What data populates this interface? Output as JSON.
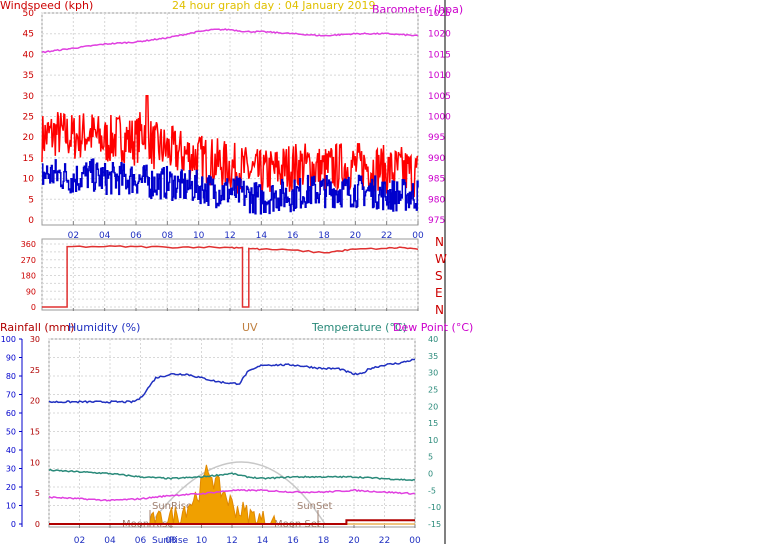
{
  "header": {
    "title": "24 hour graph day : 04 January 2019",
    "wind_label": "Windspeed (kph)",
    "baro_label": "Barometer (hpa)"
  },
  "lower_header": {
    "rain_label": "Rainfall (mm)",
    "humidity_label": "Humidity (%)",
    "uv_label": "UV",
    "temp_label": "Temperature (°C)",
    "dew_label": "Dew Point (°C)"
  },
  "annotations": {
    "sunrise": "SunRise",
    "sunset": "SunSet",
    "moonrise": "Moon Rise",
    "moonset": "Moon Set",
    "sunrise_axis": "SunRise"
  },
  "colors": {
    "wind_gust": "#ff0000",
    "wind_avg": "#0000cc",
    "barometer": "#e040e0",
    "direction": "#e03030",
    "humidity": "#2030c0",
    "temperature": "#2a8a7a",
    "dewpoint": "#e040e0",
    "rain": "#b00000",
    "uv": "#f0a000",
    "title": "#e0c000"
  },
  "chart_data": [
    {
      "type": "line",
      "x_ticks": [
        "02",
        "04",
        "06",
        "08",
        "10",
        "12",
        "14",
        "16",
        "18",
        "20",
        "22",
        "00"
      ],
      "xlim": [
        0,
        24
      ],
      "left_axis": {
        "ylim": [
          0,
          50
        ],
        "ticks": [
          "0",
          "5",
          "10",
          "15",
          "20",
          "25",
          "30",
          "35",
          "40",
          "45",
          "50"
        ]
      },
      "right_axis": {
        "ylim": [
          975,
          1025
        ],
        "ticks": [
          "975",
          "980",
          "985",
          "990",
          "995",
          "1000",
          "1005",
          "1010",
          "1015",
          "1020",
          "1025"
        ]
      },
      "series": [
        {
          "values": [
            [
              0,
              20
            ],
            [
              1,
              21
            ],
            [
              2,
              20
            ],
            [
              3,
              21
            ],
            [
              4,
              19
            ],
            [
              5,
              20
            ],
            [
              6,
              19
            ],
            [
              6.7,
              23
            ],
            [
              7,
              18
            ],
            [
              8,
              17
            ],
            [
              9,
              16
            ],
            [
              10,
              15
            ],
            [
              11,
              14
            ],
            [
              12,
              13
            ],
            [
              13,
              12
            ],
            [
              14,
              11
            ],
            [
              15,
              12
            ],
            [
              16,
              13
            ],
            [
              17,
              13
            ],
            [
              18,
              12
            ],
            [
              19,
              13
            ],
            [
              20,
              13
            ],
            [
              21,
              13
            ],
            [
              22,
              12
            ],
            [
              23,
              12
            ],
            [
              24,
              11
            ]
          ]
        },
        {
          "values": [
            [
              0,
              11
            ],
            [
              1,
              11
            ],
            [
              2,
              10
            ],
            [
              3,
              11
            ],
            [
              4,
              10
            ],
            [
              5,
              10
            ],
            [
              6,
              10
            ],
            [
              7,
              9
            ],
            [
              8,
              9
            ],
            [
              9,
              8
            ],
            [
              10,
              8
            ],
            [
              11,
              7
            ],
            [
              12,
              7
            ],
            [
              13,
              6
            ],
            [
              14,
              5
            ],
            [
              15,
              6
            ],
            [
              16,
              6
            ],
            [
              17,
              7
            ],
            [
              18,
              7
            ],
            [
              19,
              7
            ],
            [
              20,
              7
            ],
            [
              21,
              7
            ],
            [
              22,
              6
            ],
            [
              23,
              6
            ],
            [
              24,
              6
            ]
          ]
        },
        {
          "values": [
            [
              0,
              1015.5
            ],
            [
              2,
              1016.5
            ],
            [
              4,
              1017.5
            ],
            [
              6,
              1018
            ],
            [
              8,
              1019
            ],
            [
              10,
              1020.5
            ],
            [
              11,
              1021
            ],
            [
              12,
              1021
            ],
            [
              13,
              1020.5
            ],
            [
              14,
              1020.5
            ],
            [
              16,
              1020
            ],
            [
              18,
              1019.5
            ],
            [
              20,
              1020
            ],
            [
              22,
              1020
            ],
            [
              24,
              1019.5
            ]
          ]
        }
      ]
    },
    {
      "type": "line",
      "x_ticks": [
        "02",
        "04",
        "06",
        "08",
        "10",
        "12",
        "14",
        "16",
        "18",
        "20",
        "22",
        "00"
      ],
      "xlim": [
        0,
        24
      ],
      "ylim": [
        0,
        360
      ],
      "y_ticks": [
        "0",
        "45",
        "90",
        "135",
        "180",
        "225",
        "270",
        "315",
        "360"
      ],
      "direction_labels": [
        "N",
        "W",
        "S",
        "E",
        "N"
      ],
      "series": [
        {
          "values": [
            [
              0,
              0
            ],
            [
              1.6,
              0
            ],
            [
              1.6,
              345
            ],
            [
              4,
              345
            ],
            [
              6,
              345
            ],
            [
              8,
              342
            ],
            [
              10,
              343
            ],
            [
              12,
              340
            ],
            [
              12.8,
              340
            ],
            [
              12.8,
              0
            ],
            [
              13.2,
              0
            ],
            [
              13.2,
              335
            ],
            [
              14,
              330
            ],
            [
              16,
              325
            ],
            [
              18,
              310
            ],
            [
              19,
              320
            ],
            [
              20,
              330
            ],
            [
              22,
              335
            ],
            [
              23,
              340
            ],
            [
              24,
              330
            ]
          ]
        }
      ]
    },
    {
      "type": "line",
      "x_ticks": [
        "02",
        "04",
        "06",
        "08",
        "10",
        "12",
        "14",
        "16",
        "18",
        "20",
        "22",
        "00"
      ],
      "xlim": [
        0,
        24
      ],
      "humidity_axis": {
        "ylim": [
          0,
          100
        ],
        "ticks": [
          "0",
          "10",
          "20",
          "30",
          "40",
          "50",
          "60",
          "70",
          "80",
          "90",
          "100"
        ]
      },
      "rain_axis": {
        "ylim": [
          0,
          30
        ],
        "ticks": [
          "0",
          "5",
          "10",
          "15",
          "20",
          "25",
          "30"
        ]
      },
      "temp_axis": {
        "ylim": [
          -15,
          40
        ],
        "ticks": [
          "-15",
          "-10",
          "-5",
          "0",
          "5",
          "10",
          "15",
          "20",
          "25",
          "30",
          "35",
          "40"
        ]
      },
      "series": [
        {
          "values": [
            [
              0,
              66
            ],
            [
              2,
              66
            ],
            [
              4,
              66
            ],
            [
              5.5,
              66
            ],
            [
              6,
              68
            ],
            [
              7,
              79
            ],
            [
              8,
              81
            ],
            [
              9,
              81
            ],
            [
              10,
              79
            ],
            [
              11,
              77
            ],
            [
              12,
              76
            ],
            [
              12.5,
              76
            ],
            [
              13,
              82
            ],
            [
              14,
              86
            ],
            [
              15,
              86
            ],
            [
              16,
              86
            ],
            [
              17,
              85
            ],
            [
              18,
              84
            ],
            [
              19,
              84
            ],
            [
              20,
              81
            ],
            [
              20.5,
              81
            ],
            [
              21,
              84
            ],
            [
              22,
              86
            ],
            [
              23,
              87
            ],
            [
              24,
              89
            ]
          ]
        },
        {
          "values": [
            [
              0,
              1
            ],
            [
              2,
              0.5
            ],
            [
              4,
              0
            ],
            [
              6,
              -1
            ],
            [
              8,
              -1.5
            ],
            [
              10,
              -1
            ],
            [
              12,
              0
            ],
            [
              13,
              -1
            ],
            [
              14,
              -1.5
            ],
            [
              16,
              -1
            ],
            [
              18,
              -1
            ],
            [
              20,
              -1
            ],
            [
              22,
              -1.5
            ],
            [
              24,
              -2
            ]
          ]
        },
        {
          "values": [
            [
              0,
              -7
            ],
            [
              2,
              -7.5
            ],
            [
              4,
              -8
            ],
            [
              6,
              -7.5
            ],
            [
              8,
              -6.5
            ],
            [
              10,
              -6
            ],
            [
              12,
              -5
            ],
            [
              14,
              -5
            ],
            [
              16,
              -5.5
            ],
            [
              18,
              -5.5
            ],
            [
              20,
              -5
            ],
            [
              22,
              -5.5
            ],
            [
              24,
              -6
            ]
          ]
        },
        {
          "values": [
            [
              0,
              0
            ],
            [
              19.5,
              0
            ],
            [
              19.5,
              0.6
            ],
            [
              24,
              0.6
            ]
          ]
        },
        {
          "values": [
            [
              0,
              0
            ],
            [
              6.5,
              0
            ],
            [
              7.5,
              0.3
            ],
            [
              8.5,
              0.8
            ],
            [
              9.5,
              2
            ],
            [
              10,
              3
            ],
            [
              10.5,
              4.5
            ],
            [
              11,
              3
            ],
            [
              11.5,
              2.5
            ],
            [
              12,
              1.5
            ],
            [
              13,
              0.8
            ],
            [
              14,
              0.3
            ],
            [
              15,
              0
            ],
            [
              24,
              0
            ]
          ]
        }
      ]
    }
  ]
}
